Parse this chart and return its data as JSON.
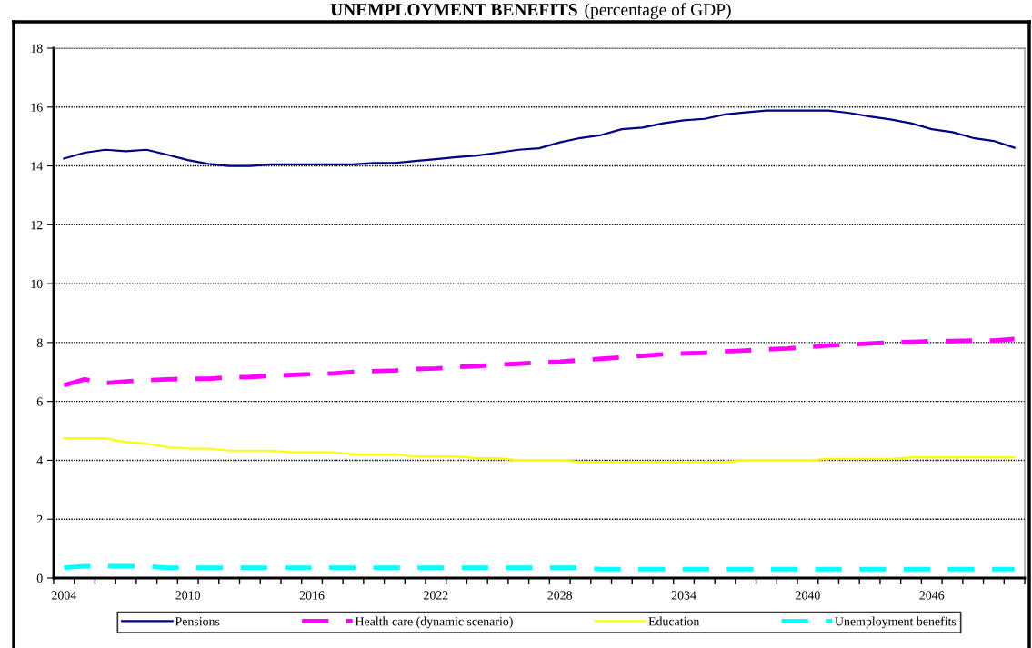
{
  "chart_data": {
    "type": "line",
    "title": "UNEMPLOYMENT BENEFITS",
    "subtitle": "(percentage of GDP)",
    "categories": [
      "2004",
      null,
      null,
      null,
      null,
      null,
      "2010",
      null,
      null,
      null,
      null,
      null,
      "2016",
      null,
      null,
      null,
      null,
      null,
      "2022",
      null,
      null,
      null,
      null,
      null,
      "2028",
      null,
      null,
      null,
      null,
      null,
      "2034",
      null,
      null,
      null,
      null,
      null,
      "2040",
      null,
      null,
      null,
      null,
      null,
      "2046",
      null,
      null,
      null,
      null
    ],
    "series": [
      {
        "name": "Pensions",
        "color": "#000080",
        "line_style": "solid",
        "values": [
          14.25,
          14.45,
          14.55,
          14.5,
          14.55,
          14.38,
          14.2,
          14.07,
          14.0,
          14.0,
          14.05,
          14.05,
          14.05,
          14.05,
          14.05,
          14.1,
          14.1,
          14.17,
          14.23,
          14.3,
          14.35,
          14.45,
          14.55,
          14.6,
          14.8,
          14.95,
          15.05,
          15.25,
          15.3,
          15.45,
          15.55,
          15.6,
          15.75,
          15.82,
          15.88,
          15.88,
          15.88,
          15.88,
          15.8,
          15.68,
          15.58,
          15.45,
          15.25,
          15.15,
          14.95,
          14.85,
          14.62
        ]
      },
      {
        "name": "Health care (dynamic scenario)",
        "color": "#ff00ff",
        "line_style": "dashed",
        "values": [
          6.55,
          6.75,
          6.62,
          6.68,
          6.72,
          6.75,
          6.77,
          6.77,
          6.82,
          6.83,
          6.87,
          6.9,
          6.93,
          6.95,
          7.0,
          7.03,
          7.05,
          7.1,
          7.12,
          7.17,
          7.2,
          7.25,
          7.28,
          7.32,
          7.35,
          7.4,
          7.45,
          7.5,
          7.55,
          7.6,
          7.63,
          7.65,
          7.7,
          7.73,
          7.77,
          7.8,
          7.85,
          7.9,
          7.93,
          7.97,
          8.0,
          8.02,
          8.05,
          8.05,
          8.07,
          8.07,
          8.12
        ]
      },
      {
        "name": "Education",
        "color": "#ffff00",
        "line_style": "solid",
        "values": [
          4.75,
          4.75,
          4.75,
          4.62,
          4.57,
          4.45,
          4.4,
          4.4,
          4.33,
          4.33,
          4.33,
          4.27,
          4.27,
          4.27,
          4.2,
          4.2,
          4.2,
          4.13,
          4.13,
          4.13,
          4.07,
          4.07,
          4.0,
          4.0,
          4.0,
          3.95,
          3.95,
          3.95,
          3.95,
          3.95,
          3.95,
          3.95,
          3.95,
          4.0,
          4.0,
          4.0,
          4.0,
          4.05,
          4.05,
          4.05,
          4.05,
          4.1,
          4.1,
          4.1,
          4.1,
          4.1,
          4.1
        ]
      },
      {
        "name": "Unemployment benefits",
        "color": "#00ffff",
        "line_style": "dashed",
        "values": [
          0.35,
          0.4,
          0.4,
          0.4,
          0.4,
          0.35,
          0.35,
          0.35,
          0.35,
          0.35,
          0.35,
          0.35,
          0.35,
          0.35,
          0.35,
          0.35,
          0.35,
          0.35,
          0.35,
          0.35,
          0.35,
          0.35,
          0.35,
          0.35,
          0.35,
          0.35,
          0.3,
          0.3,
          0.3,
          0.3,
          0.3,
          0.3,
          0.3,
          0.3,
          0.3,
          0.3,
          0.3,
          0.3,
          0.3,
          0.3,
          0.3,
          0.3,
          0.3,
          0.3,
          0.3,
          0.3,
          0.3
        ]
      }
    ],
    "ylim": [
      0,
      18
    ],
    "yticks": [
      0,
      2,
      4,
      6,
      8,
      10,
      12,
      14,
      16,
      18
    ],
    "grid": "y",
    "legend": "bottom",
    "marker": "none"
  }
}
